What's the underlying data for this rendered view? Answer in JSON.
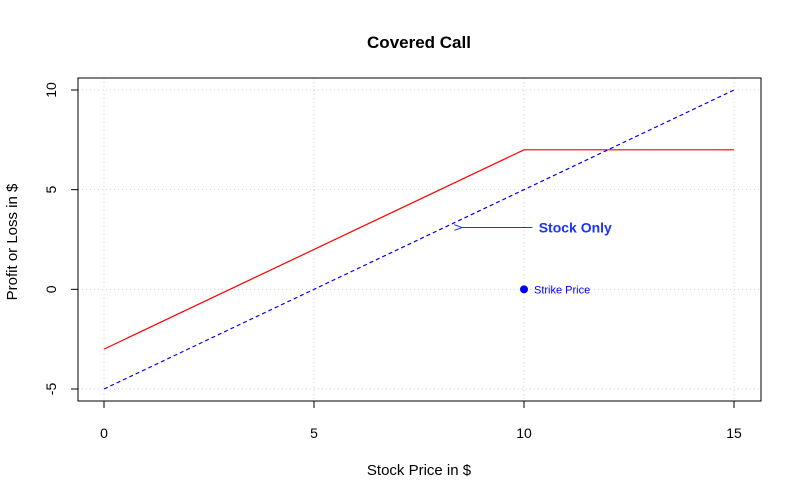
{
  "chart_data": {
    "type": "line",
    "title": "Covered Call",
    "xlabel": "Stock Price in $",
    "ylabel": "Profit or Loss in $",
    "xlim": [
      0,
      15
    ],
    "ylim": [
      -5,
      10
    ],
    "xticks": [
      "0",
      "5",
      "10",
      "15"
    ],
    "yticks": [
      "-5",
      "0",
      "5",
      "10"
    ],
    "grid": true,
    "series": [
      {
        "style": "solid",
        "color": "#ff0000",
        "x": [
          0,
          10,
          15
        ],
        "y": [
          -3,
          7,
          7
        ]
      },
      {
        "style": "dashed",
        "color": "#0000ff",
        "x": [
          0,
          15
        ],
        "y": [
          -5,
          10
        ]
      }
    ],
    "annotations": [
      {
        "text": "Stock Only",
        "color": "#1a33ff",
        "text_at": [
          10.35,
          3.1
        ],
        "arrow_from": [
          10.2,
          3.1
        ],
        "arrow_to": [
          8.5,
          3.1
        ]
      },
      {
        "text": "Strike Price",
        "color": "#0000ff",
        "point": [
          10,
          0
        ]
      }
    ]
  }
}
